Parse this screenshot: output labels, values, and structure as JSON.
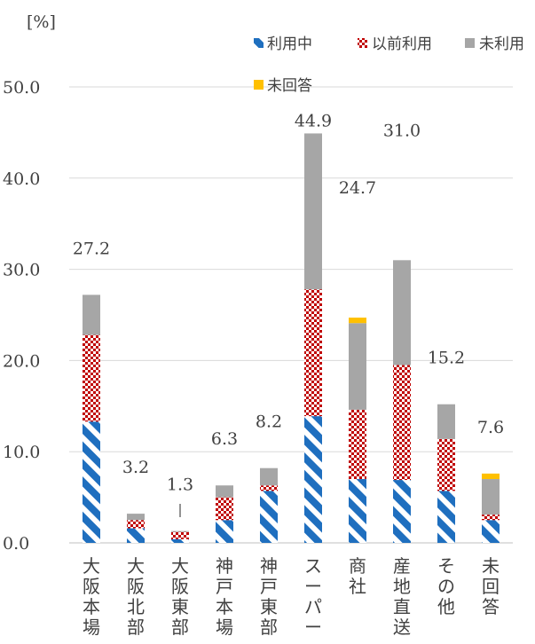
{
  "chart_data": {
    "type": "bar",
    "stacked": true,
    "unit_label": "[%]",
    "ylim": [
      0,
      50
    ],
    "yticks": [
      "0.0",
      "10.0",
      "20.0",
      "30.0",
      "40.0",
      "50.0"
    ],
    "grid": true,
    "legend_position": "top-right",
    "categories": [
      "大阪本場",
      "大阪北部",
      "大阪東部",
      "神戸本場",
      "神戸東部",
      "スーパー",
      "商社",
      "産地直送",
      "その他",
      "未回答"
    ],
    "totals": [
      "27.2",
      "3.2",
      "1.3",
      "6.3",
      "8.2",
      "44.9",
      "24.7",
      "31.0",
      "15.2",
      "7.6"
    ],
    "series": [
      {
        "name": "利用中",
        "color": "#1f6fbf",
        "pattern": "diagonal-stripe",
        "values": [
          13.3,
          1.6,
          0.4,
          2.5,
          5.7,
          13.9,
          7.0,
          6.9,
          5.7,
          2.5
        ]
      },
      {
        "name": "以前利用",
        "color": "#c00000",
        "pattern": "checker",
        "values": [
          9.5,
          0.9,
          0.8,
          2.5,
          0.6,
          13.9,
          7.6,
          12.6,
          5.7,
          0.6
        ]
      },
      {
        "name": "未利用",
        "color": "#a6a6a6",
        "pattern": "solid",
        "values": [
          4.4,
          0.7,
          0.1,
          1.3,
          1.9,
          17.1,
          9.5,
          11.5,
          3.8,
          3.9
        ]
      },
      {
        "name": "未回答",
        "color": "#ffc000",
        "pattern": "solid",
        "values": [
          0,
          0,
          0,
          0,
          0,
          0,
          0.6,
          0,
          0,
          0.6
        ]
      }
    ]
  }
}
